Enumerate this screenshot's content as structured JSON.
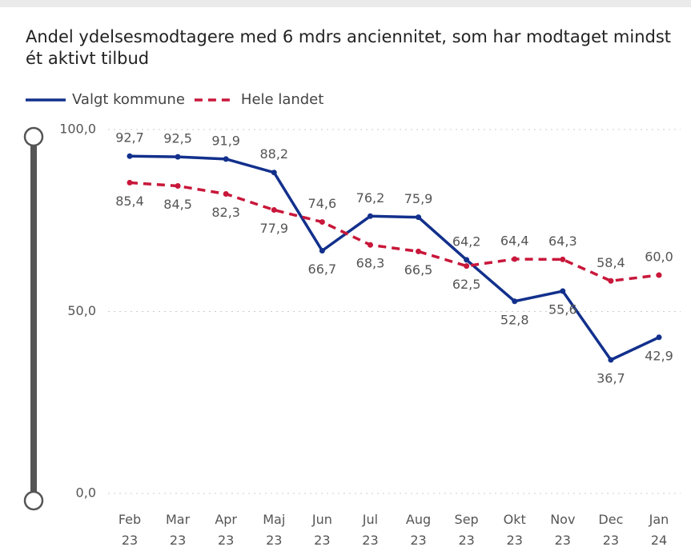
{
  "chart_data": {
    "type": "line",
    "title": "Andel ydelsesmodtagere med 6 mdrs anciennitet, som har modtaget mindst ét aktivt tilbud",
    "categories": [
      "Feb 23",
      "Mar 23",
      "Apr 23",
      "Maj 23",
      "Jun 23",
      "Jul 23",
      "Aug 23",
      "Sep 23",
      "Okt 23",
      "Nov 23",
      "Dec 23",
      "Jan 24"
    ],
    "series": [
      {
        "name": "Valgt kommune",
        "color": "#12308c",
        "dash": false,
        "values": [
          92.7,
          92.5,
          91.9,
          88.2,
          66.7,
          76.2,
          75.9,
          64.2,
          52.8,
          55.6,
          36.7,
          42.9
        ],
        "value_labels": [
          "92,7",
          "92,5",
          "91,9",
          "88,2",
          "66,7",
          "76,2",
          "75,9",
          "64,2",
          "52,8",
          "55,6",
          "36,7",
          "42,9"
        ]
      },
      {
        "name": "Hele landet",
        "color": "#c8173a",
        "dash": true,
        "values": [
          85.4,
          84.5,
          82.3,
          77.9,
          74.6,
          68.3,
          66.5,
          62.5,
          64.4,
          64.3,
          58.4,
          60.0
        ],
        "value_labels": [
          "85,4",
          "84,5",
          "82,3",
          "77,9",
          "74,6",
          "68,3",
          "66,5",
          "62,5",
          "64,4",
          "64,3",
          "58,4",
          "60,0"
        ]
      }
    ],
    "ylim": [
      0,
      100
    ],
    "yticks": [
      {
        "value": 0,
        "label": "0,0"
      },
      {
        "value": 50,
        "label": "50,0"
      },
      {
        "value": 100,
        "label": "100,0"
      }
    ],
    "grid": true,
    "legend": "top-left"
  }
}
